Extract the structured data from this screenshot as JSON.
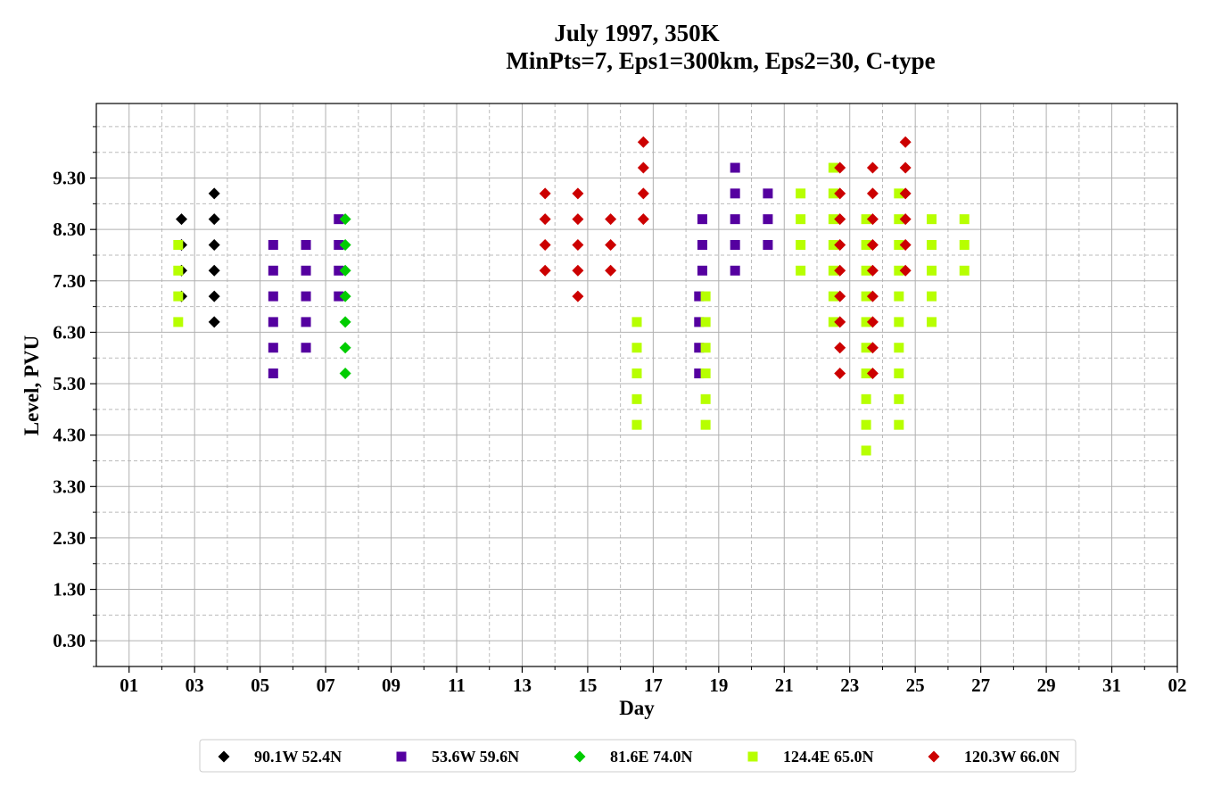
{
  "chart_data": {
    "type": "scatter",
    "title_line1": "July 1997, 350K",
    "title_line2": "MinPts=7, Eps1=300km, Eps2=30, C-type",
    "xlabel": "Day",
    "ylabel": "Level, PVU",
    "xlim": [
      0,
      33
    ],
    "ylim": [
      -0.2,
      10.75
    ],
    "x_major_ticks": [
      1,
      3,
      5,
      7,
      9,
      11,
      13,
      15,
      17,
      19,
      21,
      23,
      25,
      27,
      29,
      31,
      33
    ],
    "x_tick_labels": [
      "01",
      "03",
      "05",
      "07",
      "09",
      "11",
      "13",
      "15",
      "17",
      "19",
      "21",
      "23",
      "25",
      "27",
      "29",
      "31",
      "02"
    ],
    "x_minor_ticks": [
      2,
      4,
      6,
      8,
      10,
      12,
      14,
      16,
      18,
      20,
      22,
      24,
      26,
      28,
      30,
      32
    ],
    "y_major_ticks": [
      0.3,
      1.3,
      2.3,
      3.3,
      4.3,
      5.3,
      6.3,
      7.3,
      8.3,
      9.3
    ],
    "y_tick_labels": [
      "0.30",
      "1.30",
      "2.30",
      "3.30",
      "4.30",
      "5.30",
      "6.30",
      "7.30",
      "8.30",
      "9.30"
    ],
    "y_minor_ticks": [
      -0.2,
      0.8,
      1.8,
      2.8,
      3.8,
      4.8,
      5.8,
      6.8,
      7.8,
      8.8,
      9.8,
      10.3
    ],
    "grid": true,
    "legend_position": "bottom-center",
    "series": [
      {
        "name": "90.1W 52.4N",
        "color": "#000000",
        "marker": "diamond",
        "points": [
          [
            2.6,
            7.0
          ],
          [
            2.6,
            7.5
          ],
          [
            2.6,
            8.0
          ],
          [
            2.6,
            8.5
          ],
          [
            3.6,
            6.5
          ],
          [
            3.6,
            7.0
          ],
          [
            3.6,
            7.5
          ],
          [
            3.6,
            8.0
          ],
          [
            3.6,
            8.5
          ],
          [
            3.6,
            9.0
          ]
        ]
      },
      {
        "name": "53.6W 59.6N",
        "color": "#5500a0",
        "marker": "square",
        "points": [
          [
            5.4,
            5.5
          ],
          [
            5.4,
            6.0
          ],
          [
            5.4,
            6.5
          ],
          [
            5.4,
            7.0
          ],
          [
            5.4,
            7.5
          ],
          [
            5.4,
            8.0
          ],
          [
            6.4,
            6.0
          ],
          [
            6.4,
            6.5
          ],
          [
            6.4,
            7.0
          ],
          [
            6.4,
            7.5
          ],
          [
            6.4,
            8.0
          ],
          [
            7.4,
            7.0
          ],
          [
            7.4,
            7.5
          ],
          [
            7.4,
            8.0
          ],
          [
            7.4,
            8.5
          ],
          [
            18.4,
            5.5
          ],
          [
            18.4,
            6.0
          ],
          [
            18.4,
            6.5
          ],
          [
            18.4,
            7.0
          ],
          [
            18.5,
            7.5
          ],
          [
            18.5,
            8.0
          ],
          [
            18.5,
            8.5
          ],
          [
            19.5,
            7.5
          ],
          [
            19.5,
            8.0
          ],
          [
            19.5,
            8.5
          ],
          [
            19.5,
            9.0
          ],
          [
            19.5,
            9.5
          ],
          [
            20.5,
            8.0
          ],
          [
            20.5,
            8.5
          ],
          [
            20.5,
            9.0
          ]
        ]
      },
      {
        "name": "81.6E 74.0N",
        "color": "#00cc00",
        "marker": "diamond",
        "points": [
          [
            7.6,
            5.5
          ],
          [
            7.6,
            6.0
          ],
          [
            7.6,
            6.5
          ],
          [
            7.6,
            7.0
          ],
          [
            7.6,
            7.5
          ],
          [
            7.6,
            8.0
          ],
          [
            7.6,
            8.5
          ]
        ]
      },
      {
        "name": "124.4E 65.0N",
        "color": "#b7ff00",
        "marker": "square",
        "points": [
          [
            2.5,
            6.5
          ],
          [
            2.5,
            7.0
          ],
          [
            2.5,
            7.5
          ],
          [
            2.5,
            8.0
          ],
          [
            16.5,
            4.5
          ],
          [
            16.5,
            5.0
          ],
          [
            16.5,
            5.5
          ],
          [
            16.5,
            6.0
          ],
          [
            16.5,
            6.5
          ],
          [
            18.6,
            4.5
          ],
          [
            18.6,
            5.0
          ],
          [
            18.6,
            5.5
          ],
          [
            18.6,
            6.0
          ],
          [
            18.6,
            6.5
          ],
          [
            18.6,
            7.0
          ],
          [
            21.5,
            7.5
          ],
          [
            21.5,
            8.0
          ],
          [
            21.5,
            8.5
          ],
          [
            21.5,
            9.0
          ],
          [
            22.5,
            6.5
          ],
          [
            22.5,
            7.0
          ],
          [
            22.5,
            7.5
          ],
          [
            22.5,
            8.0
          ],
          [
            22.5,
            8.5
          ],
          [
            22.5,
            9.0
          ],
          [
            22.5,
            9.5
          ],
          [
            23.5,
            4.0
          ],
          [
            23.5,
            4.5
          ],
          [
            23.5,
            5.0
          ],
          [
            23.5,
            5.5
          ],
          [
            23.5,
            6.0
          ],
          [
            23.5,
            6.5
          ],
          [
            23.5,
            7.0
          ],
          [
            23.5,
            7.5
          ],
          [
            23.5,
            8.0
          ],
          [
            23.5,
            8.5
          ],
          [
            24.5,
            4.5
          ],
          [
            24.5,
            5.0
          ],
          [
            24.5,
            5.5
          ],
          [
            24.5,
            6.0
          ],
          [
            24.5,
            6.5
          ],
          [
            24.5,
            7.0
          ],
          [
            24.5,
            7.5
          ],
          [
            24.5,
            8.0
          ],
          [
            24.5,
            8.5
          ],
          [
            24.5,
            9.0
          ],
          [
            25.5,
            6.5
          ],
          [
            25.5,
            7.0
          ],
          [
            25.5,
            7.5
          ],
          [
            25.5,
            8.0
          ],
          [
            25.5,
            8.5
          ],
          [
            26.5,
            7.5
          ],
          [
            26.5,
            8.0
          ],
          [
            26.5,
            8.5
          ]
        ]
      },
      {
        "name": "120.3W 66.0N",
        "color": "#cc0000",
        "marker": "diamond",
        "points": [
          [
            13.7,
            7.5
          ],
          [
            13.7,
            8.0
          ],
          [
            13.7,
            8.5
          ],
          [
            13.7,
            9.0
          ],
          [
            14.7,
            7.0
          ],
          [
            14.7,
            7.5
          ],
          [
            14.7,
            8.0
          ],
          [
            14.7,
            8.5
          ],
          [
            14.7,
            9.0
          ],
          [
            15.7,
            7.5
          ],
          [
            15.7,
            8.0
          ],
          [
            15.7,
            8.5
          ],
          [
            16.7,
            8.5
          ],
          [
            16.7,
            9.0
          ],
          [
            16.7,
            9.5
          ],
          [
            16.7,
            10.0
          ],
          [
            22.7,
            5.5
          ],
          [
            22.7,
            6.0
          ],
          [
            22.7,
            6.5
          ],
          [
            22.7,
            7.0
          ],
          [
            22.7,
            7.5
          ],
          [
            22.7,
            8.0
          ],
          [
            22.7,
            8.5
          ],
          [
            22.7,
            9.0
          ],
          [
            22.7,
            9.5
          ],
          [
            23.7,
            5.5
          ],
          [
            23.7,
            6.0
          ],
          [
            23.7,
            6.5
          ],
          [
            23.7,
            7.0
          ],
          [
            23.7,
            7.5
          ],
          [
            23.7,
            8.0
          ],
          [
            23.7,
            8.5
          ],
          [
            23.7,
            9.0
          ],
          [
            23.7,
            9.5
          ],
          [
            24.7,
            7.5
          ],
          [
            24.7,
            8.0
          ],
          [
            24.7,
            8.5
          ],
          [
            24.7,
            9.0
          ],
          [
            24.7,
            9.5
          ],
          [
            24.7,
            10.0
          ]
        ]
      }
    ]
  }
}
